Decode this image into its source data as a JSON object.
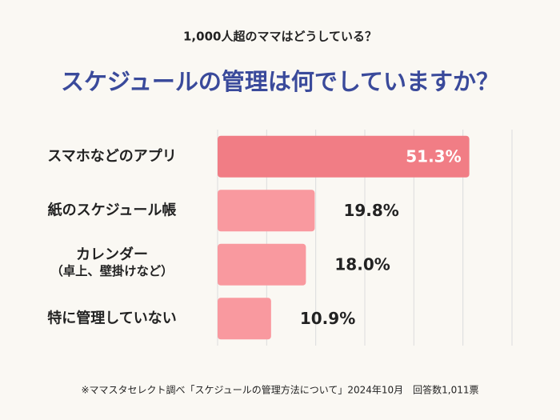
{
  "chart_data": {
    "type": "hbar",
    "subtitle": "1,000人超のママはどうしている？",
    "title": "スケジュールの管理は何でしていますか？",
    "categories": [
      "スマホなどのアプリ",
      "紙のスケジュール帳",
      "カレンダー\n（卓上、壁掛けなど）",
      "特に管理していない"
    ],
    "values": [
      51.3,
      19.8,
      18.0,
      10.9
    ],
    "value_labels": [
      "51.3%",
      "19.8%",
      "18.0%",
      "10.9%"
    ],
    "colors": [
      "#f17d85",
      "#f9999f",
      "#f9999f",
      "#f9999f"
    ],
    "xlim": [
      0,
      60
    ],
    "xticks": [
      0,
      10,
      20,
      30,
      40,
      50,
      60
    ],
    "grid": true,
    "note": "※ママスタセレクト調べ「スケジュールの管理方法について」2024年10月　回答数1,011票"
  }
}
